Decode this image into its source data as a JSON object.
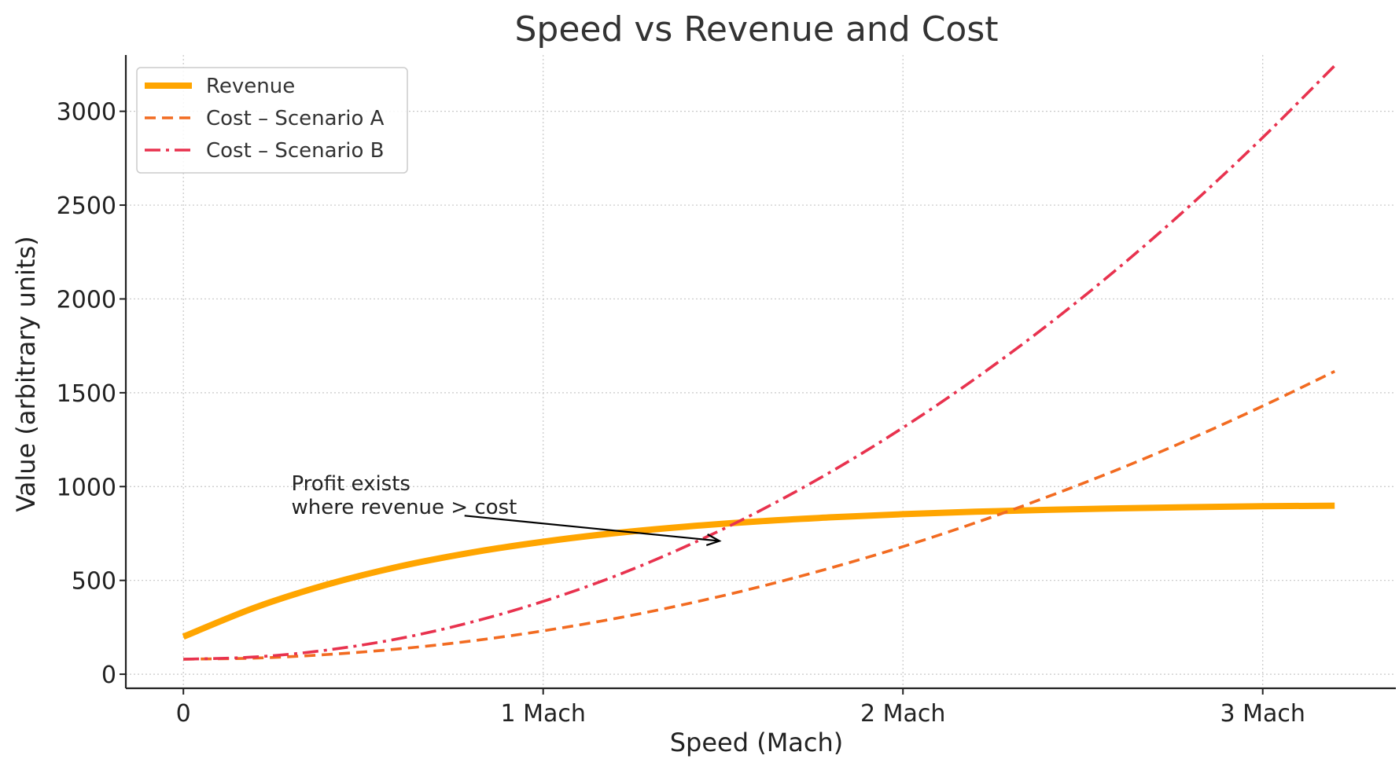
{
  "chart_data": {
    "type": "line",
    "title": "Speed vs Revenue and Cost",
    "xlabel": "Speed (Mach)",
    "ylabel": "Value (arbitrary units)",
    "xlim": [
      -0.16,
      3.37
    ],
    "ylim": [
      -75,
      3300
    ],
    "x_ticks": [
      {
        "value": 0,
        "label": "0"
      },
      {
        "value": 1,
        "label": "1 Mach"
      },
      {
        "value": 2,
        "label": "2 Mach"
      },
      {
        "value": 3,
        "label": "3 Mach"
      }
    ],
    "y_ticks": [
      {
        "value": 0,
        "label": "0"
      },
      {
        "value": 500,
        "label": "500"
      },
      {
        "value": 1000,
        "label": "1000"
      },
      {
        "value": 1500,
        "label": "1500"
      },
      {
        "value": 2000,
        "label": "2000"
      },
      {
        "value": 2500,
        "label": "2500"
      },
      {
        "value": 3000,
        "label": "3000"
      }
    ],
    "grid": true,
    "legend_position": "top-left",
    "series": [
      {
        "name": "Revenue",
        "color": "#FFA500",
        "style": "solid",
        "x": [
          0,
          0.2,
          0.4,
          0.6,
          0.8,
          1.0,
          1.2,
          1.4,
          1.6,
          1.8,
          2.0,
          2.2,
          2.4,
          2.6,
          2.8,
          3.0,
          3.2
        ],
        "y": [
          200,
          356,
          478,
          574,
          648,
          706,
          752,
          787,
          815,
          836,
          853,
          866,
          876,
          884,
          890,
          895,
          898
        ]
      },
      {
        "name": "Cost – Scenario A",
        "color": "#F26B21",
        "style": "dashed",
        "x": [
          0,
          0.2,
          0.4,
          0.6,
          0.8,
          1.0,
          1.2,
          1.4,
          1.6,
          1.8,
          2.0,
          2.2,
          2.4,
          2.6,
          2.8,
          3.0,
          3.2
        ],
        "y": [
          80,
          86,
          105,
          135,
          177,
          231,
          297,
          375,
          465,
          567,
          680,
          806,
          944,
          1093,
          1255,
          1429,
          1614
        ]
      },
      {
        "name": "Cost – Scenario B",
        "color": "#E8324E",
        "style": "dashdot",
        "x": [
          0,
          0.2,
          0.4,
          0.6,
          0.8,
          1.0,
          1.2,
          1.4,
          1.6,
          1.8,
          2.0,
          2.2,
          2.4,
          2.6,
          2.8,
          3.0,
          3.2
        ],
        "y": [
          80,
          92,
          129,
          190,
          277,
          388,
          523,
          684,
          869,
          1079,
          1314,
          1574,
          1858,
          2167,
          2501,
          2860,
          3243
        ]
      }
    ],
    "annotation": {
      "lines": [
        "Profit exists",
        "where revenue > cost"
      ],
      "text_at": [
        0.3,
        980
      ],
      "arrow_from": [
        1.0,
        870
      ],
      "arrow_to": [
        1.49,
        710
      ]
    }
  }
}
